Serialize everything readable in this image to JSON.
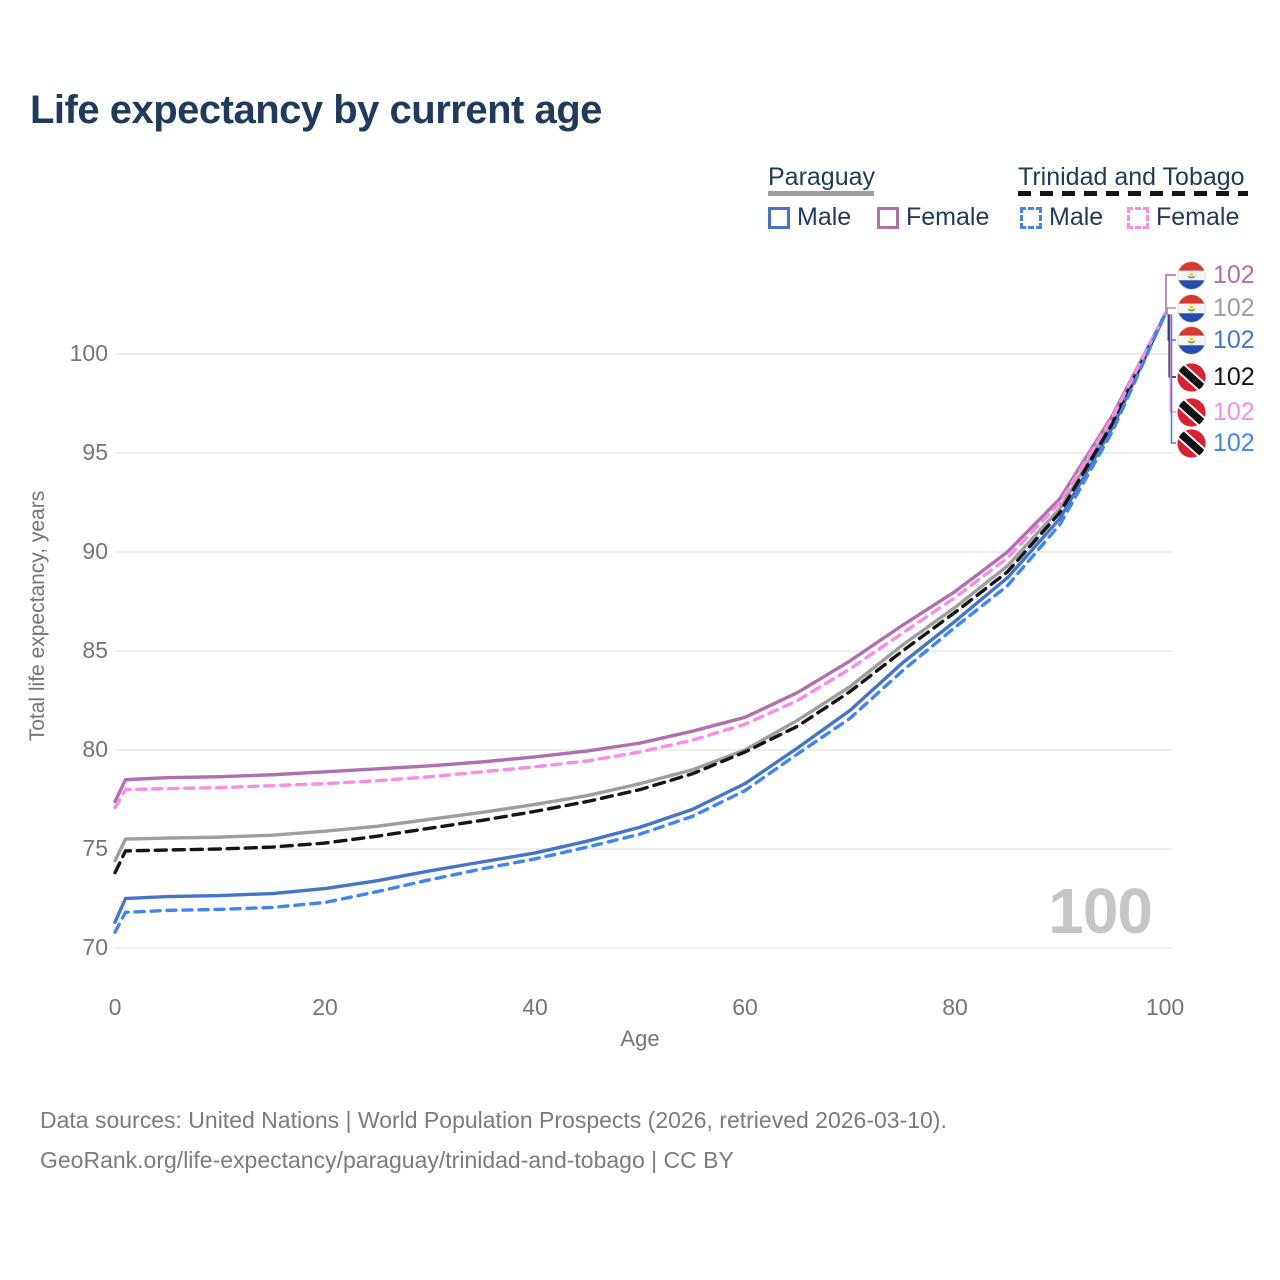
{
  "title": "Life expectancy by current age",
  "legend": {
    "groups": [
      {
        "name": "Paraguay",
        "line_style": "solid",
        "line_color": "#9e9e9e",
        "items": [
          {
            "label": "Male",
            "color": "#4575c8",
            "dashed": false
          },
          {
            "label": "Female",
            "color": "#b06fad",
            "dashed": false
          }
        ]
      },
      {
        "name": "Trinidad and Tobago",
        "line_style": "dashed",
        "line_color": "#151515",
        "items": [
          {
            "label": "Male",
            "color": "#4185f3",
            "dashed": true
          },
          {
            "label": "Female",
            "color": "#fa8ce8",
            "dashed": true
          }
        ]
      }
    ]
  },
  "chart_data": {
    "type": "line",
    "title": "Life expectancy by current age",
    "xlabel": "Age",
    "ylabel": "Total life expectancy, years",
    "xlim": [
      0,
      100
    ],
    "ylim": [
      70,
      102.5
    ],
    "x_ticks": [
      0,
      20,
      40,
      60,
      80,
      100
    ],
    "y_ticks": [
      70,
      75,
      80,
      85,
      90,
      95,
      100
    ],
    "grid": "horizontal",
    "legend_position": "top-right",
    "ages": [
      0,
      1,
      5,
      10,
      15,
      20,
      25,
      30,
      35,
      40,
      45,
      50,
      55,
      60,
      65,
      70,
      75,
      80,
      85,
      90,
      95,
      100
    ],
    "series": [
      {
        "name": "Paraguay Both sexes",
        "country": "Paraguay",
        "sex": "both",
        "color": "#9e9e9e",
        "dashed": false,
        "values": [
          74.4,
          75.5,
          75.55,
          75.6,
          75.7,
          75.9,
          76.15,
          76.5,
          76.85,
          77.25,
          77.7,
          78.3,
          79.0,
          80.0,
          81.5,
          83.2,
          85.3,
          87.2,
          89.3,
          92.2,
          96.6,
          102
        ]
      },
      {
        "name": "Paraguay Female",
        "country": "Paraguay",
        "sex": "female",
        "color": "#b06fad",
        "dashed": false,
        "values": [
          77.4,
          78.5,
          78.6,
          78.65,
          78.75,
          78.9,
          79.05,
          79.2,
          79.4,
          79.65,
          79.95,
          80.35,
          80.95,
          81.65,
          82.9,
          84.5,
          86.3,
          88.0,
          90.0,
          92.7,
          96.9,
          102
        ]
      },
      {
        "name": "Paraguay Male",
        "country": "Paraguay",
        "sex": "male",
        "color": "#4575c8",
        "dashed": false,
        "values": [
          71.3,
          72.5,
          72.6,
          72.65,
          72.75,
          73.0,
          73.4,
          73.9,
          74.35,
          74.8,
          75.4,
          76.1,
          77.0,
          78.3,
          80.1,
          82.0,
          84.4,
          86.5,
          88.7,
          91.7,
          96.3,
          102
        ]
      },
      {
        "name": "Trinidad and Tobago Both sexes",
        "country": "Trinidad and Tobago",
        "sex": "both",
        "color": "#151515",
        "dashed": true,
        "values": [
          73.8,
          74.9,
          74.95,
          75.0,
          75.1,
          75.3,
          75.65,
          76.05,
          76.45,
          76.9,
          77.4,
          78.0,
          78.8,
          79.9,
          81.2,
          82.95,
          85.0,
          86.95,
          89.0,
          92.0,
          96.5,
          102
        ]
      },
      {
        "name": "Trinidad and Tobago Female",
        "country": "Trinidad and Tobago",
        "sex": "female",
        "color": "#fa8ce8",
        "dashed": true,
        "values": [
          77.1,
          78.0,
          78.05,
          78.1,
          78.2,
          78.3,
          78.45,
          78.65,
          78.9,
          79.15,
          79.45,
          79.9,
          80.5,
          81.3,
          82.5,
          84.1,
          85.9,
          87.7,
          89.7,
          92.5,
          96.8,
          102
        ]
      },
      {
        "name": "Trinidad and Tobago Male",
        "country": "Trinidad and Tobago",
        "sex": "male",
        "color": "#4185f3",
        "dashed": true,
        "values": [
          70.8,
          71.8,
          71.9,
          71.95,
          72.05,
          72.3,
          72.85,
          73.45,
          74.0,
          74.5,
          75.1,
          75.75,
          76.65,
          77.95,
          79.8,
          81.6,
          84.0,
          86.2,
          88.3,
          91.4,
          96.1,
          102
        ]
      }
    ],
    "end_labels": [
      {
        "series": "Paraguay Female",
        "value": "102",
        "color": "#b06fad",
        "flag": "paraguay"
      },
      {
        "series": "Paraguay Both sexes",
        "value": "102",
        "color": "#9e9e9e",
        "flag": "paraguay"
      },
      {
        "series": "Paraguay Male",
        "value": "102",
        "color": "#4575c8",
        "flag": "paraguay"
      },
      {
        "series": "Trinidad and Tobago Both sexes",
        "value": "102",
        "color": "#151515",
        "flag": "trinidad-and-tobago"
      },
      {
        "series": "Trinidad and Tobago Female",
        "value": "102",
        "color": "#fa8ce8",
        "flag": "trinidad-and-tobago"
      },
      {
        "series": "Trinidad and Tobago Male",
        "value": "102",
        "color": "#4185f3",
        "flag": "trinidad-and-tobago"
      }
    ]
  },
  "watermark": "100",
  "footer": {
    "line1": "Data sources: United Nations | World Population Prospects (2026, retrieved 2026-03-10).",
    "line2": "GeoRank.org/life-expectancy/paraguay/trinidad-and-tobago | CC BY"
  }
}
